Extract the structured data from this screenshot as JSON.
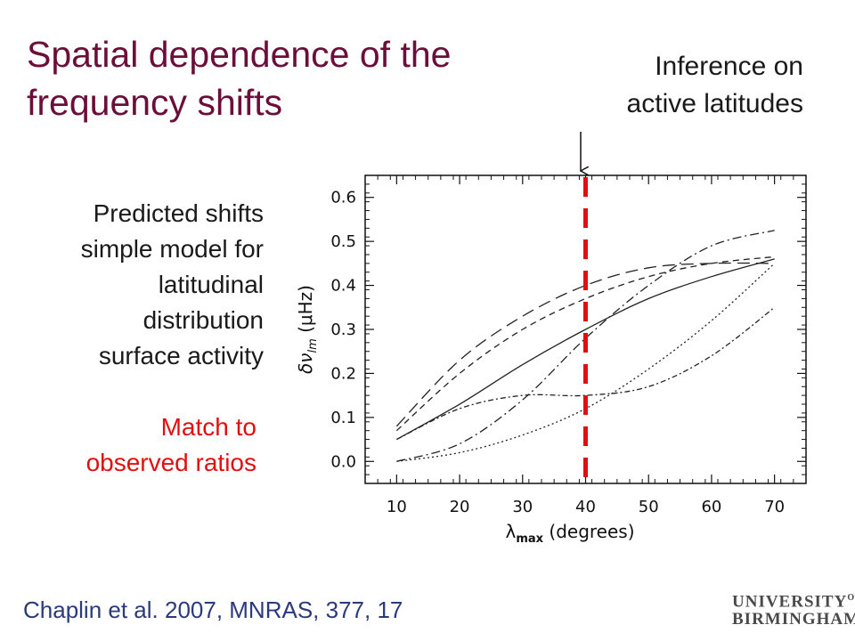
{
  "slide": {
    "title_line1": "Spatial dependence of the",
    "title_line2": "frequency shifts",
    "inference_line1": "Inference on",
    "inference_line2": "active latitudes",
    "predicted_lines": [
      "Predicted shifts",
      "simple model for",
      "latitudinal",
      "distribution",
      "surface activity"
    ],
    "match_line1": "Match to",
    "match_line2": "observed ratios",
    "citation": "Chaplin et al. 2007, MNRAS, 377, 17",
    "logo_line1": "UNIVERSITY",
    "logo_of": "OF",
    "logo_line2": "BIRMINGHAM",
    "colors": {
      "title": "#6b0f3a",
      "highlight": "#e01010",
      "citation": "#2a3a7a"
    }
  },
  "chart_data": {
    "type": "line",
    "xlabel_main": "λ",
    "xlabel_sub": "max",
    "xlabel_rest": " (degrees)",
    "ylabel_main": "δν",
    "ylabel_sub": "lm",
    "ylabel_rest": " (μHz)",
    "xlim": [
      5,
      75
    ],
    "ylim": [
      -0.05,
      0.65
    ],
    "xticks": [
      10,
      20,
      30,
      40,
      50,
      60,
      70
    ],
    "yticks": [
      0.0,
      0.1,
      0.2,
      0.3,
      0.4,
      0.5,
      0.6
    ],
    "marker_x": 40,
    "marker_color": "#e01010",
    "series": [
      {
        "style": "solid",
        "x": [
          10,
          20,
          30,
          40,
          50,
          60,
          70
        ],
        "y": [
          0.05,
          0.13,
          0.22,
          0.3,
          0.37,
          0.42,
          0.46
        ]
      },
      {
        "style": "long-dash",
        "x": [
          10,
          20,
          30,
          40,
          50,
          60,
          70
        ],
        "y": [
          0.08,
          0.23,
          0.33,
          0.4,
          0.44,
          0.45,
          0.45
        ]
      },
      {
        "style": "short-dash",
        "x": [
          10,
          20,
          30,
          40,
          50,
          60,
          70
        ],
        "y": [
          0.07,
          0.2,
          0.3,
          0.37,
          0.42,
          0.45,
          0.465
        ]
      },
      {
        "style": "dash-dot",
        "x": [
          10,
          20,
          30,
          40,
          50,
          60,
          70
        ],
        "y": [
          0.0,
          0.04,
          0.14,
          0.28,
          0.4,
          0.49,
          0.525
        ]
      },
      {
        "style": "dash-dot-2",
        "x": [
          10,
          20,
          30,
          40,
          50,
          60,
          70
        ],
        "y": [
          0.05,
          0.12,
          0.15,
          0.15,
          0.17,
          0.24,
          0.35
        ]
      },
      {
        "style": "dotted",
        "x": [
          10,
          20,
          30,
          40,
          50,
          60,
          70
        ],
        "y": [
          0.0,
          0.02,
          0.06,
          0.12,
          0.21,
          0.32,
          0.45
        ]
      }
    ]
  }
}
